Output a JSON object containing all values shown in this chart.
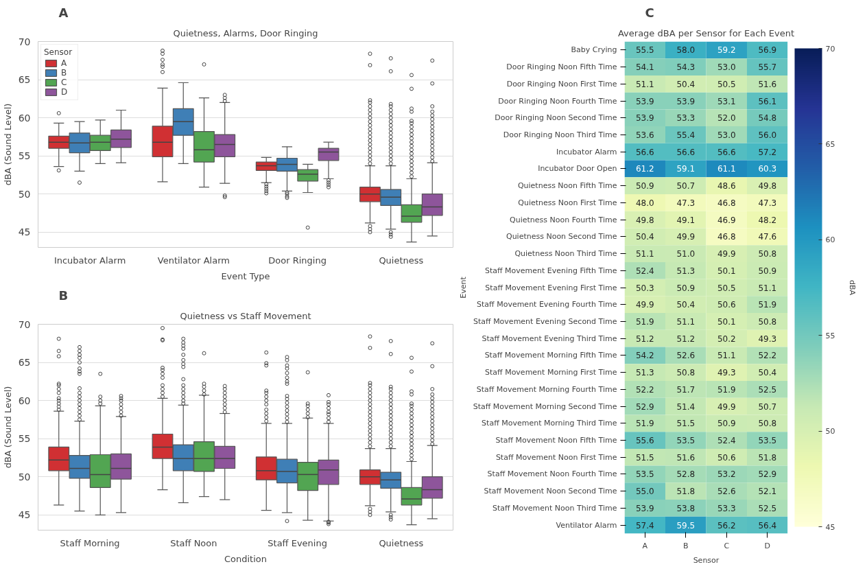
{
  "chart_data": [
    {
      "type": "box",
      "title": "Quietness, Alarms, Door Ringing",
      "annotations": [
        "A"
      ],
      "xlabel": "Event Type",
      "ylabel": "dBA (Sound Level)",
      "categories": [
        "Incubator Alarm",
        "Ventilator Alarm",
        "Door Ringing",
        "Quietness"
      ],
      "ylim": [
        43,
        70
      ],
      "yticks": [
        45,
        50,
        55,
        60,
        65,
        70
      ],
      "grid": "y",
      "legend": "top left",
      "legend_title": "Sensor",
      "series": [
        {
          "name": "A",
          "color": "#d03033",
          "boxes": [
            {
              "low": 53.6,
              "q1": 56.0,
              "median": 56.8,
              "q3": 57.6,
              "high": 59.3,
              "outliers": [
                53.1,
                60.6
              ]
            },
            {
              "low": 51.6,
              "q1": 54.9,
              "median": 56.8,
              "q3": 58.9,
              "high": 63.9,
              "outliers": [
                66.0,
                66.7,
                67.0,
                67.6,
                68.4,
                68.8
              ]
            },
            {
              "low": 51.5,
              "q1": 53.1,
              "median": 53.7,
              "q3": 54.2,
              "high": 54.8,
              "outliers": [
                50.1,
                50.4,
                50.7,
                51.0,
                51.3
              ]
            },
            {
              "low": 46.2,
              "q1": 49.0,
              "median": 50.0,
              "q3": 50.9,
              "high": 53.7,
              "outliers": [
                45.0,
                45.4,
                45.8,
                54.0,
                54.5,
                55.0,
                55.5,
                56.0,
                56.5,
                57.0,
                57.5,
                58.0,
                58.5,
                59.0,
                59.5,
                60.0,
                60.5,
                61.0,
                61.5,
                62.0,
                62.3,
                66.9,
                68.4
              ]
            }
          ]
        },
        {
          "name": "B",
          "color": "#3f7fb6",
          "boxes": [
            {
              "low": 53.0,
              "q1": 55.4,
              "median": 56.7,
              "q3": 58.0,
              "high": 59.5,
              "outliers": [
                51.5
              ]
            },
            {
              "low": 54.0,
              "q1": 57.7,
              "median": 59.5,
              "q3": 61.2,
              "high": 64.6
            },
            {
              "low": 50.4,
              "q1": 53.0,
              "median": 53.9,
              "q3": 54.7,
              "high": 56.2,
              "outliers": [
                49.5,
                49.7,
                50.0,
                50.2
              ]
            },
            {
              "low": 45.4,
              "q1": 48.5,
              "median": 49.6,
              "q3": 50.6,
              "high": 53.7,
              "outliers": [
                44.4,
                44.7,
                45.0,
                54.0,
                54.5,
                55.0,
                55.5,
                56.0,
                56.5,
                57.0,
                57.5,
                58.0,
                58.5,
                59.0,
                59.5,
                60.0,
                60.5,
                61.0,
                61.5,
                61.8,
                66.1,
                67.8
              ]
            }
          ]
        },
        {
          "name": "C",
          "color": "#52a552",
          "boxes": [
            {
              "low": 54.0,
              "q1": 55.7,
              "median": 56.8,
              "q3": 57.7,
              "high": 59.7
            },
            {
              "low": 50.9,
              "q1": 54.2,
              "median": 55.8,
              "q3": 58.2,
              "high": 62.6,
              "outliers": [
                67.0
              ]
            },
            {
              "low": 50.2,
              "q1": 51.7,
              "median": 52.6,
              "q3": 53.2,
              "high": 53.9,
              "outliers": [
                45.6
              ]
            },
            {
              "low": 43.7,
              "q1": 46.3,
              "median": 47.1,
              "q3": 48.6,
              "high": 52.0,
              "outliers": [
                52.3,
                52.8,
                53.3,
                53.8,
                54.3,
                54.8,
                55.3,
                55.8,
                56.3,
                56.8,
                57.3,
                57.8,
                58.3,
                58.8,
                59.3,
                59.6,
                60.8,
                61.2,
                63.8,
                65.6
              ]
            }
          ]
        },
        {
          "name": "D",
          "color": "#8e559b",
          "boxes": [
            {
              "low": 54.1,
              "q1": 56.1,
              "median": 57.2,
              "q3": 58.4,
              "high": 61.0
            },
            {
              "low": 51.4,
              "q1": 54.9,
              "median": 56.5,
              "q3": 57.8,
              "high": 62.0,
              "outliers": [
                49.6,
                49.8,
                62.2,
                62.6,
                63.0
              ]
            },
            {
              "low": 52.0,
              "q1": 54.4,
              "median": 55.5,
              "q3": 56.0,
              "high": 56.8,
              "outliers": [
                50.9,
                51.2,
                51.5,
                51.8
              ]
            },
            {
              "low": 44.5,
              "q1": 47.2,
              "median": 48.3,
              "q3": 50.0,
              "high": 54.1,
              "outliers": [
                54.3,
                54.8,
                55.3,
                55.8,
                56.3,
                56.8,
                57.3,
                57.8,
                58.3,
                58.8,
                59.3,
                59.8,
                60.3,
                60.8,
                61.5,
                64.5,
                67.5
              ]
            }
          ]
        }
      ]
    },
    {
      "type": "box",
      "title": "Quietness vs Staff Movement",
      "annotations": [
        "B"
      ],
      "xlabel": "Condition",
      "ylabel": "dBA (Sound Level)",
      "categories": [
        "Staff Morning",
        "Staff Noon",
        "Staff Evening",
        "Quietness"
      ],
      "ylim": [
        43,
        70
      ],
      "yticks": [
        45,
        50,
        55,
        60,
        65,
        70
      ],
      "grid": "y",
      "series": [
        {
          "color": "#d03033",
          "boxes": [
            {
              "low": 46.3,
              "q1": 50.8,
              "median": 52.2,
              "q3": 53.9,
              "high": 58.6,
              "outliers": [
                58.8,
                59.2,
                59.6,
                60.0,
                60.3,
                61.0,
                61.5,
                62.0,
                62.2,
                65.8,
                66.5,
                68.1
              ]
            },
            {
              "low": 48.3,
              "q1": 52.4,
              "median": 53.9,
              "q3": 55.6,
              "high": 60.3,
              "outliers": [
                60.5,
                61.0,
                61.5,
                62.0,
                63.0,
                63.5,
                64.0,
                64.3,
                67.9,
                68.0,
                69.5
              ]
            },
            {
              "low": 45.6,
              "q1": 49.6,
              "median": 50.8,
              "q3": 52.6,
              "high": 57.0,
              "outliers": [
                57.3,
                57.8,
                58.3,
                58.8,
                59.5,
                60.0,
                60.5,
                61.0,
                61.3,
                64.6,
                64.9,
                66.3
              ]
            },
            {
              "low": 46.2,
              "q1": 49.0,
              "median": 50.0,
              "q3": 50.9,
              "high": 53.7,
              "outliers": [
                45.0,
                45.4,
                45.8,
                54.0,
                54.5,
                55.0,
                55.5,
                56.0,
                56.5,
                57.0,
                57.5,
                58.0,
                58.5,
                59.0,
                59.5,
                60.0,
                60.5,
                61.0,
                61.5,
                62.0,
                62.3,
                66.9,
                68.4
              ]
            }
          ]
        },
        {
          "color": "#3f7fb6",
          "boxes": [
            {
              "low": 45.5,
              "q1": 49.8,
              "median": 51.1,
              "q3": 52.8,
              "high": 57.3,
              "outliers": [
                57.5,
                58.0,
                58.5,
                59.0,
                59.5,
                60.0,
                60.5,
                61.0,
                61.6,
                63.5,
                63.8,
                64.2,
                65.0,
                65.6,
                66.0,
                66.5,
                67.0
              ]
            },
            {
              "low": 46.6,
              "q1": 50.8,
              "median": 52.4,
              "q3": 54.2,
              "high": 59.4,
              "outliers": [
                59.6,
                60.0,
                60.5,
                61.0,
                61.5,
                62.0,
                62.8,
                64.4,
                64.8,
                65.3,
                66.0,
                66.8,
                67.2,
                67.6,
                68.1
              ]
            },
            {
              "low": 45.3,
              "q1": 49.2,
              "median": 50.7,
              "q3": 52.3,
              "high": 57.0,
              "outliers": [
                44.2,
                57.2,
                57.7,
                58.2,
                58.7,
                59.2,
                59.7,
                60.2,
                60.6,
                62.2,
                62.5,
                63.0,
                63.6,
                64.2,
                64.6,
                65.3,
                65.7
              ]
            },
            {
              "low": 45.4,
              "q1": 48.5,
              "median": 49.6,
              "q3": 50.6,
              "high": 53.7,
              "outliers": [
                44.4,
                44.7,
                45.0,
                54.0,
                54.5,
                55.0,
                55.5,
                56.0,
                56.5,
                57.0,
                57.5,
                58.0,
                58.5,
                59.0,
                59.5,
                60.0,
                60.5,
                61.0,
                61.5,
                61.8,
                66.1,
                67.8
              ]
            }
          ]
        },
        {
          "color": "#52a552",
          "boxes": [
            {
              "low": 45.0,
              "q1": 48.6,
              "median": 50.3,
              "q3": 52.9,
              "high": 59.3,
              "outliers": [
                59.6,
                60.0,
                60.5,
                63.5
              ]
            },
            {
              "low": 47.4,
              "q1": 50.7,
              "median": 52.4,
              "q3": 54.6,
              "high": 60.7,
              "outliers": [
                60.8,
                61.3,
                61.8,
                62.2,
                66.2
              ]
            },
            {
              "low": 44.3,
              "q1": 48.2,
              "median": 50.3,
              "q3": 51.9,
              "high": 57.7,
              "outliers": [
                57.8,
                58.3,
                58.8,
                59.3,
                59.6,
                63.7
              ]
            },
            {
              "low": 43.7,
              "q1": 46.3,
              "median": 47.1,
              "q3": 48.6,
              "high": 52.0,
              "outliers": [
                52.3,
                52.8,
                53.3,
                53.8,
                54.3,
                54.8,
                55.3,
                55.8,
                56.3,
                56.8,
                57.3,
                57.8,
                58.3,
                58.8,
                59.3,
                59.6,
                60.8,
                61.2,
                63.8,
                65.6
              ]
            }
          ]
        },
        {
          "color": "#8e559b",
          "boxes": [
            {
              "low": 45.3,
              "q1": 49.7,
              "median": 51.1,
              "q3": 53.0,
              "high": 57.9,
              "outliers": [
                58.0,
                58.5,
                59.0,
                59.5,
                60.0,
                60.3,
                60.6
              ]
            },
            {
              "low": 47.0,
              "q1": 51.1,
              "median": 52.4,
              "q3": 54.0,
              "high": 58.3,
              "outliers": [
                58.5,
                59.0,
                59.5,
                60.0,
                60.5,
                61.0,
                61.5,
                61.9
              ]
            },
            {
              "low": 44.2,
              "q1": 49.0,
              "median": 50.9,
              "q3": 52.2,
              "high": 57.0,
              "outliers": [
                43.8,
                44.0,
                44.1,
                57.2,
                57.7,
                58.2,
                58.5,
                59.0,
                59.5,
                59.8,
                60.7
              ]
            },
            {
              "low": 44.5,
              "q1": 47.2,
              "median": 48.3,
              "q3": 50.0,
              "high": 54.1,
              "outliers": [
                54.3,
                54.8,
                55.3,
                55.8,
                56.3,
                56.8,
                57.3,
                57.8,
                58.3,
                58.8,
                59.3,
                59.8,
                60.3,
                60.8,
                61.5,
                64.5,
                67.5
              ]
            }
          ]
        }
      ]
    },
    {
      "type": "heatmap",
      "title": "Average dBA per Sensor for Each Event",
      "annotations": [
        "C"
      ],
      "xlabel": "Sensor",
      "ylabel": "Event",
      "clabel": "dBA",
      "categories": [
        "A",
        "B",
        "C",
        "D"
      ],
      "y_categories": [
        "Baby Crying",
        "Door Ringing Noon Fifth Time",
        "Door Ringing Noon First Time",
        "Door Ringing Noon Fourth Time",
        "Door Ringing Noon Second Time",
        "Door Ringing Noon Third Time",
        "Incubator Alarm",
        "Incubator Door Open",
        "Quietness Noon Fifth Time",
        "Quietness Noon First Time",
        "Quietness Noon Fourth Time",
        "Quietness Noon Second Time",
        "Quietness Noon Third Time",
        "Staff Movement Evening Fifth Time",
        "Staff Movement Evening First Time",
        "Staff Movement Evening Fourth Time",
        "Staff Movement Evening Second Time",
        "Staff Movement Evening Third Time",
        "Staff Movement Morning Fifth Time",
        "Staff Movement Morning First Time",
        "Staff Movement Morning Fourth Time",
        "Staff Movement Morning Second Time",
        "Staff Movement Morning Third Time",
        "Staff Movement Noon Fifth Time",
        "Staff Movement Noon First Time",
        "Staff Movement Noon Fourth Time",
        "Staff Movement Noon Second Time",
        "Staff Movement Noon Third Time",
        "Ventilator Alarm"
      ],
      "cells": [
        [
          55.5,
          58.0,
          59.2,
          56.9
        ],
        [
          54.1,
          54.3,
          53.0,
          55.7
        ],
        [
          51.1,
          50.4,
          50.5,
          51.6
        ],
        [
          53.9,
          53.9,
          53.1,
          56.1
        ],
        [
          53.9,
          53.3,
          52.0,
          54.8
        ],
        [
          53.6,
          55.4,
          53.0,
          56.0
        ],
        [
          56.6,
          56.6,
          56.6,
          57.2
        ],
        [
          61.2,
          59.1,
          61.1,
          60.3
        ],
        [
          50.9,
          50.7,
          48.6,
          49.8
        ],
        [
          48.0,
          47.3,
          46.8,
          47.3
        ],
        [
          49.8,
          49.1,
          46.9,
          48.2
        ],
        [
          50.4,
          49.9,
          46.8,
          47.6
        ],
        [
          51.1,
          51.0,
          49.9,
          50.8
        ],
        [
          52.4,
          51.3,
          50.1,
          50.9
        ],
        [
          50.3,
          50.9,
          50.5,
          51.1
        ],
        [
          49.9,
          50.4,
          50.6,
          51.9
        ],
        [
          51.9,
          51.1,
          50.1,
          50.8
        ],
        [
          51.2,
          51.2,
          50.2,
          49.3
        ],
        [
          54.2,
          52.6,
          51.1,
          52.2
        ],
        [
          51.3,
          50.8,
          49.3,
          50.4
        ],
        [
          52.2,
          51.7,
          51.9,
          52.5
        ],
        [
          52.9,
          51.4,
          49.9,
          50.7
        ],
        [
          51.9,
          51.5,
          50.9,
          50.8
        ],
        [
          55.6,
          53.5,
          52.4,
          53.5
        ],
        [
          51.5,
          51.6,
          50.6,
          51.8
        ],
        [
          53.5,
          52.8,
          53.2,
          52.9
        ],
        [
          55.0,
          51.8,
          52.6,
          52.1
        ],
        [
          53.9,
          53.8,
          53.3,
          52.5
        ],
        [
          57.4,
          59.5,
          56.2,
          56.4
        ]
      ],
      "cell_labels": [
        [
          "55.5",
          "58.0",
          "59.2",
          "56.9"
        ],
        [
          "54.1",
          "54.3",
          "53.0",
          "55.7"
        ],
        [
          "51.1",
          "50.4",
          "50.5",
          "51.6"
        ],
        [
          "53.9",
          "53.9",
          "53.1",
          "56.1"
        ],
        [
          "53.9",
          "53.3",
          "52.0",
          "54.8"
        ],
        [
          "53.6",
          "55.4",
          "53.0",
          "56.0"
        ],
        [
          "56.6",
          "56.6",
          "56.6",
          "57.2"
        ],
        [
          "61.2",
          "59.1",
          "61.1",
          "60.3"
        ],
        [
          "50.9",
          "50.7",
          "48.6",
          "49.8"
        ],
        [
          "48.0",
          "47.3",
          "46.8",
          "47.3"
        ],
        [
          "49.8",
          "49.1",
          "46.9",
          "48.2"
        ],
        [
          "50.4",
          "49.9",
          "46.8",
          "47.6"
        ],
        [
          "51.1",
          "51.0",
          "49.9",
          "50.8"
        ],
        [
          "52.4",
          "51.3",
          "50.1",
          "50.9"
        ],
        [
          "50.3",
          "50.9",
          "50.5",
          "51.1"
        ],
        [
          "49.9",
          "50.4",
          "50.6",
          "51.9"
        ],
        [
          "51.9",
          "51.1",
          "50.1",
          "50.8"
        ],
        [
          "51.2",
          "51.2",
          "50.2",
          "49.3"
        ],
        [
          "54.2",
          "52.6",
          "51.1",
          "52.2"
        ],
        [
          "51.3",
          "50.8",
          "49.3",
          "50.4"
        ],
        [
          "52.2",
          "51.7",
          "51.9",
          "52.5"
        ],
        [
          "52.9",
          "51.4",
          "49.9",
          "50.7"
        ],
        [
          "51.9",
          "51.5",
          "50.9",
          "50.8"
        ],
        [
          "55.6",
          "53.5",
          "52.4",
          "53.5"
        ],
        [
          "51.5",
          "51.6",
          "50.6",
          "51.8"
        ],
        [
          "53.5",
          "52.8",
          "53.2",
          "52.9"
        ],
        [
          "55.0",
          "51.8",
          "52.6",
          "52.1"
        ],
        [
          "53.9",
          "53.8",
          "53.3",
          "52.5"
        ],
        [
          "57.4",
          "59.5",
          "56.2",
          "56.4"
        ]
      ],
      "clim": [
        45,
        70
      ],
      "cticks": [
        45,
        50,
        55,
        60,
        65,
        70
      ]
    }
  ]
}
